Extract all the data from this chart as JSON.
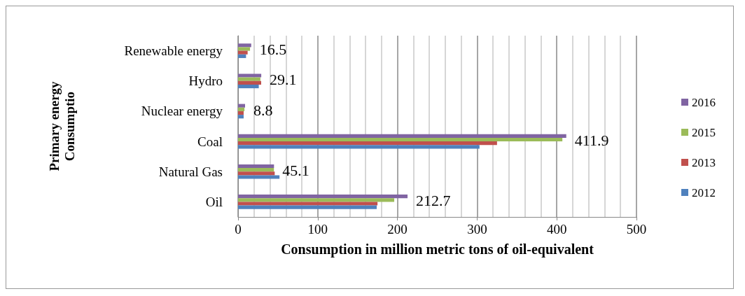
{
  "chart_data": {
    "type": "bar",
    "orientation": "horizontal",
    "xlabel": "Consumption in million metric tons of oil-equivalent",
    "ylabel": "Primary energy\nConsumptio",
    "categories": [
      "Renewable energy",
      "Hydro",
      "Nuclear energy",
      "Coal",
      "Natural Gas",
      "Oil"
    ],
    "series": [
      {
        "name": "2016",
        "color": "#8064a2",
        "values": [
          16.5,
          29.1,
          8.8,
          411.9,
          45.1,
          212.7
        ],
        "value_labels": [
          "16.5",
          "29.1",
          "8.8",
          "411.9",
          "45.1",
          "212.7"
        ]
      },
      {
        "name": "2015",
        "color": "#9bbb59",
        "values": [
          15,
          28,
          8,
          407,
          45,
          196
        ]
      },
      {
        "name": "2013",
        "color": "#c0504d",
        "values": [
          12,
          29,
          7,
          325,
          46,
          175
        ]
      },
      {
        "name": "2012",
        "color": "#4f81bd",
        "values": [
          10,
          26,
          7,
          303,
          52,
          174
        ]
      }
    ],
    "xlim": [
      0,
      500
    ],
    "xticks": [
      0,
      100,
      200,
      300,
      400,
      500
    ],
    "grid": "x",
    "legend": "right"
  }
}
